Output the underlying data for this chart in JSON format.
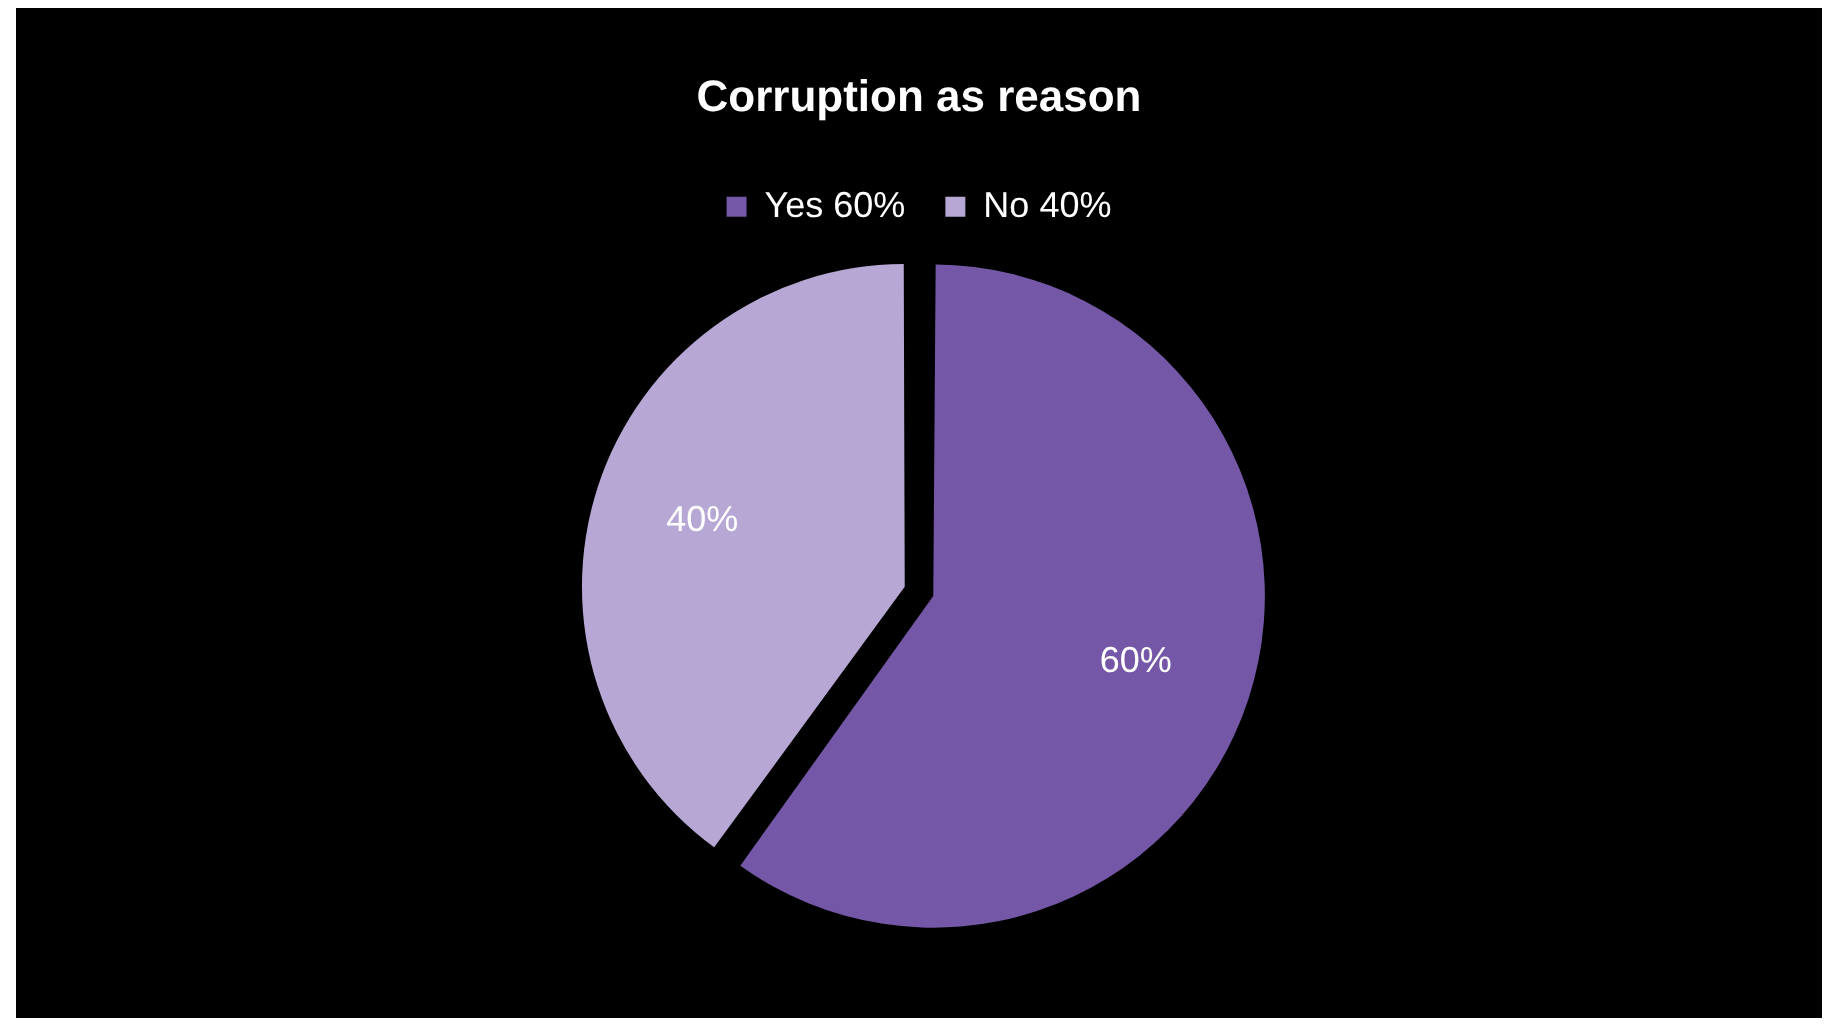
{
  "chart_data": {
    "type": "pie",
    "title": "Corruption as reason",
    "categories": [
      "Yes 60%",
      "No 40%"
    ],
    "values": [
      60,
      40
    ],
    "colors": [
      "#7457a6",
      "#b7a7d4"
    ],
    "value_labels": [
      "60%",
      "40%"
    ],
    "legend": "top"
  }
}
